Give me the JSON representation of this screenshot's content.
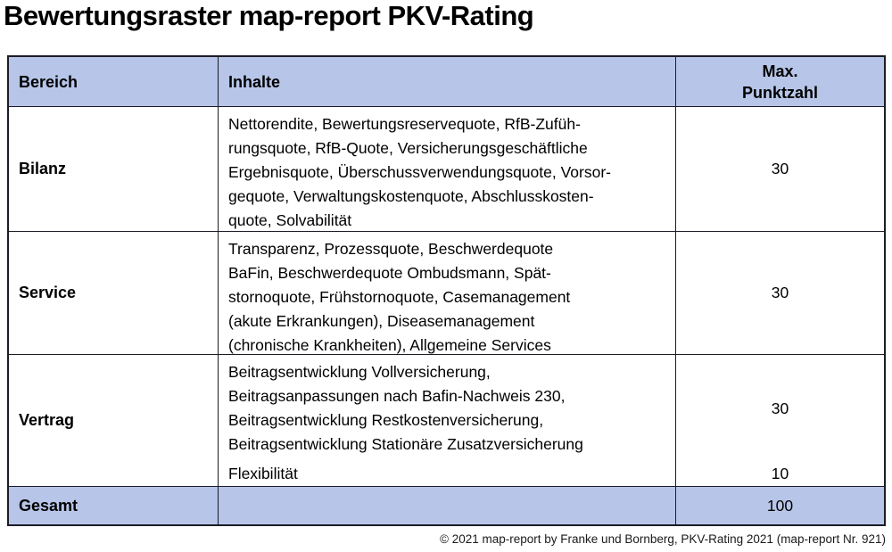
{
  "page": {
    "title": "Bewertungsraster map-report PKV-Rating",
    "footer": "© 2021 map-report by Franke und Bornberg, PKV-Rating 2021 (map-report Nr. 921)"
  },
  "colors": {
    "header_bg": "#b7c5e8",
    "total_row_bg": "#b7c5e8",
    "border": "#1c1c26",
    "text": "#000000",
    "page_bg": "#ffffff"
  },
  "table": {
    "columns": {
      "bereich": "Bereich",
      "inhalte": "Inhalte",
      "max_line1": "Max.",
      "max_line2": "Punktzahl"
    },
    "rows": [
      {
        "bereich": "Bilanz",
        "inhalte": [
          "Nettorendite, Bewertungsreservequote, RfB-Zufüh-",
          "rungsquote, RfB-Quote, Versicherungsgeschäftliche",
          "Ergebnisquote, Überschussverwendungsquote, Vorsor-",
          "gequote, Verwaltungskostenquote, Abschlusskosten-",
          "quote, Solvabilität"
        ],
        "max": "30"
      },
      {
        "bereich": "Service",
        "inhalte": [
          "Transparenz, Prozessquote, Beschwerdequote",
          "BaFin, Beschwerdequote Ombudsmann, Spät-",
          "stornoquote, Frühstornoquote, Casemanagement",
          "(akute Erkrankungen), Diseasemanagement",
          "(chronische Krankheiten), Allgemeine Services"
        ],
        "max": "30"
      },
      {
        "bereich": "Vertrag",
        "inhalte": [
          "Beitragsentwicklung Vollversicherung,",
          "Beitragsanpassungen nach Bafin-Nachweis 230,",
          "Beitragsentwicklung Restkostenversicherung,",
          "Beitragsentwicklung Stationäre Zusatzversicherung"
        ],
        "max": "30",
        "extra": {
          "inhalte": "Flexibilität",
          "max": "10"
        }
      }
    ],
    "total": {
      "bereich": "Gesamt",
      "inhalte": "",
      "max": "100"
    }
  }
}
